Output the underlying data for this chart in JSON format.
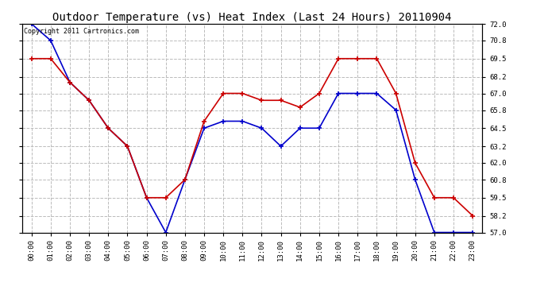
{
  "title": "Outdoor Temperature (vs) Heat Index (Last 24 Hours) 20110904",
  "copyright_text": "Copyright 2011 Cartronics.com",
  "hours": [
    "00:00",
    "01:00",
    "02:00",
    "03:00",
    "04:00",
    "05:00",
    "06:00",
    "07:00",
    "08:00",
    "09:00",
    "10:00",
    "11:00",
    "12:00",
    "13:00",
    "14:00",
    "15:00",
    "16:00",
    "17:00",
    "18:00",
    "19:00",
    "20:00",
    "21:00",
    "22:00",
    "23:00"
  ],
  "temp": [
    72.0,
    70.8,
    67.8,
    66.5,
    64.5,
    63.2,
    59.5,
    57.0,
    60.8,
    64.5,
    65.0,
    65.0,
    64.5,
    63.2,
    64.5,
    64.5,
    67.0,
    67.0,
    67.0,
    65.8,
    60.8,
    57.0,
    57.0,
    57.0
  ],
  "heat_index": [
    69.5,
    69.5,
    67.8,
    66.5,
    64.5,
    63.2,
    59.5,
    59.5,
    60.8,
    65.0,
    67.0,
    67.0,
    66.5,
    66.5,
    66.0,
    67.0,
    69.5,
    69.5,
    69.5,
    67.0,
    62.0,
    59.5,
    59.5,
    58.2
  ],
  "temp_color": "#0000cc",
  "heat_color": "#cc0000",
  "marker": "+",
  "marker_size": 5,
  "linewidth": 1.2,
  "ylim_min": 57.0,
  "ylim_max": 72.0,
  "yticks": [
    57.0,
    58.2,
    59.5,
    60.8,
    62.0,
    63.2,
    64.5,
    65.8,
    67.0,
    68.2,
    69.5,
    70.8,
    72.0
  ],
  "bg_color": "#ffffff",
  "plot_bg_color": "#ffffff",
  "grid_color": "#bbbbbb",
  "grid_style": "--",
  "title_fontsize": 10,
  "tick_fontsize": 6.5,
  "copyright_fontsize": 6
}
